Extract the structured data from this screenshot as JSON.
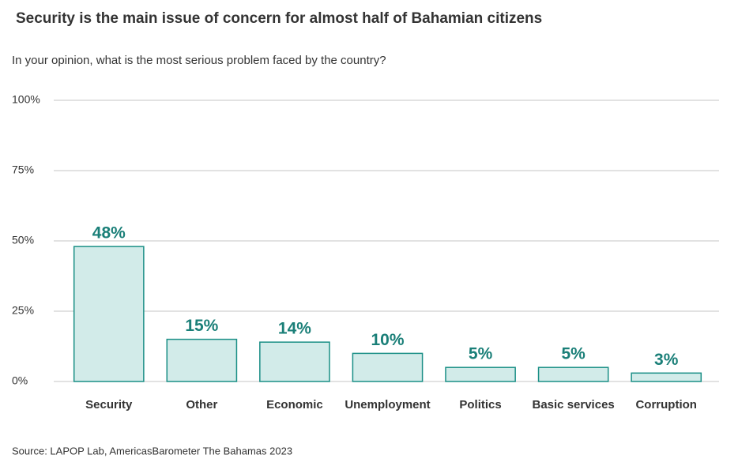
{
  "chart_data": {
    "type": "bar",
    "title": "Security is the main issue of concern for almost half of Bahamian citizens",
    "subtitle": "In your opinion, what is the most serious problem faced by the country?",
    "source": "Source: LAPOP Lab, AmericasBarometer The Bahamas 2023",
    "categories": [
      "Security",
      "Other",
      "Economic",
      "Unemployment",
      "Politics",
      "Basic services",
      "Corruption"
    ],
    "values": [
      48,
      15,
      14,
      10,
      5,
      5,
      3
    ],
    "value_labels": [
      "48%",
      "15%",
      "14%",
      "10%",
      "5%",
      "5%",
      "3%"
    ],
    "color": "#d2ebe9",
    "edge_color": "#1a8f86",
    "label_color": "#1a7f78",
    "ylim": [
      0,
      100
    ],
    "yticks": [
      {
        "value": 0,
        "label": "0%"
      },
      {
        "value": 25,
        "label": "25%"
      },
      {
        "value": 50,
        "label": "50%"
      },
      {
        "value": 75,
        "label": "75%"
      },
      {
        "value": 100,
        "label": "100%"
      }
    ],
    "grid": true
  }
}
